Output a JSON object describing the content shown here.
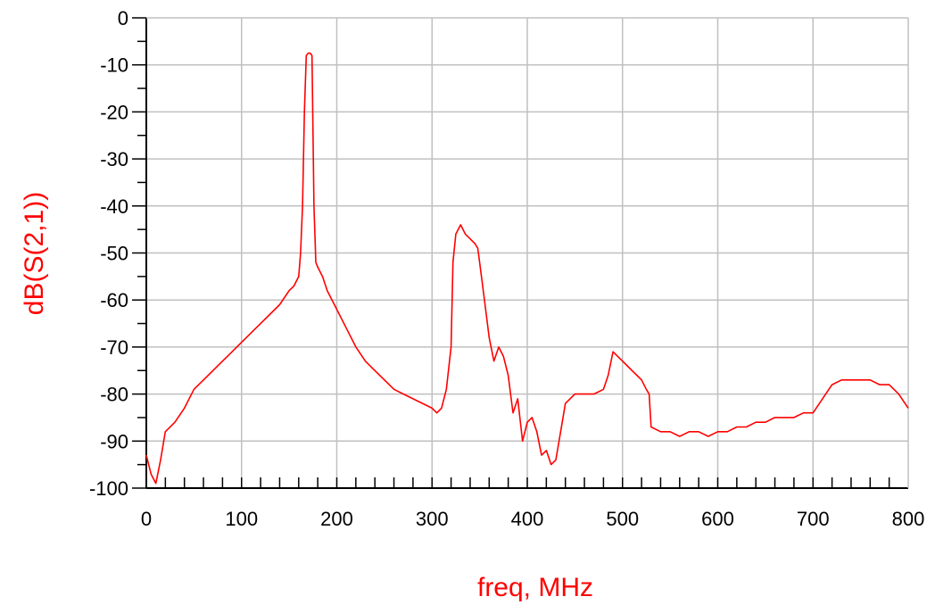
{
  "chart_data": {
    "type": "line",
    "title": "",
    "xlabel": "freq, MHz",
    "ylabel": "dB(S(2,1))",
    "xlim": [
      0,
      800
    ],
    "ylim": [
      -100,
      0
    ],
    "x_ticks": [
      0,
      100,
      200,
      300,
      400,
      500,
      600,
      700,
      800
    ],
    "y_ticks": [
      0,
      -10,
      -20,
      -30,
      -40,
      -50,
      -60,
      -70,
      -80,
      -90,
      -100
    ],
    "x_tick_labels": [
      "0",
      "100",
      "200",
      "300",
      "400",
      "500",
      "600",
      "700",
      "800"
    ],
    "y_tick_labels": [
      "0",
      "-10",
      "-20",
      "-30",
      "-40",
      "-50",
      "-60",
      "-70",
      "-80",
      "-90",
      "-100"
    ],
    "grid": true,
    "legend": "none",
    "colors": {
      "series": "#ff0000",
      "axis_label": "#ff0000",
      "grid": "#c0c0c0",
      "axis": "#000000"
    },
    "series": [
      {
        "x": [
          0,
          5,
          10,
          15,
          20,
          30,
          40,
          50,
          60,
          70,
          80,
          90,
          100,
          110,
          120,
          130,
          140,
          150,
          155,
          160,
          162,
          164,
          166,
          168,
          170,
          172,
          174,
          176,
          178,
          180,
          185,
          190,
          200,
          210,
          220,
          230,
          240,
          250,
          260,
          270,
          280,
          290,
          300,
          305,
          310,
          315,
          320,
          322,
          325,
          330,
          335,
          340,
          345,
          348,
          350,
          355,
          360,
          365,
          370,
          375,
          380,
          385,
          390,
          395,
          400,
          405,
          410,
          415,
          420,
          425,
          430,
          435,
          440,
          450,
          460,
          470,
          480,
          485,
          490,
          495,
          500,
          505,
          510,
          515,
          520,
          525,
          528,
          530,
          540,
          550,
          560,
          570,
          580,
          590,
          600,
          610,
          620,
          630,
          640,
          650,
          660,
          670,
          680,
          690,
          700,
          710,
          720,
          730,
          740,
          750,
          760,
          770,
          780,
          790,
          800
        ],
        "values": [
          -93,
          -97,
          -99,
          -94,
          -88,
          -86,
          -83,
          -79,
          -77,
          -75,
          -73,
          -71,
          -69,
          -67,
          -65,
          -63,
          -61,
          -58,
          -57,
          -55,
          -50,
          -40,
          -20,
          -8,
          -7.5,
          -7.5,
          -8,
          -40,
          -52,
          -53,
          -55,
          -58,
          -62,
          -66,
          -70,
          -73,
          -75,
          -77,
          -79,
          -80,
          -81,
          -82,
          -83,
          -84,
          -83,
          -79,
          -70,
          -52,
          -46,
          -44,
          -46,
          -47,
          -48,
          -49,
          -52,
          -60,
          -68,
          -73,
          -70,
          -72,
          -76,
          -84,
          -81,
          -90,
          -86,
          -85,
          -88,
          -93,
          -92,
          -95,
          -94,
          -88,
          -82,
          -80,
          -80,
          -80,
          -79,
          -76,
          -71,
          -72,
          -73,
          -74,
          -75,
          -76,
          -77,
          -79,
          -80,
          -87,
          -88,
          -88,
          -89,
          -88,
          -88,
          -89,
          -88,
          -88,
          -87,
          -87,
          -86,
          -86,
          -85,
          -85,
          -85,
          -84,
          -84,
          -81,
          -78,
          -77,
          -77,
          -77,
          -77,
          -78,
          -78,
          -80,
          -83
        ]
      }
    ]
  }
}
